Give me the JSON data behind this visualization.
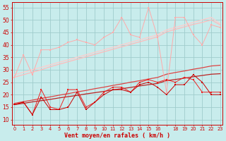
{
  "bg_color": "#c8ecec",
  "grid_color": "#a0cccc",
  "xlabel": "Vent moyen/en rafales ( km/h )",
  "ylim": [
    8,
    57
  ],
  "yticks": [
    10,
    15,
    20,
    25,
    30,
    35,
    40,
    45,
    50,
    55
  ],
  "xlabels": [
    "0",
    "1",
    "2",
    "3",
    "4",
    "5",
    "6",
    "7",
    "8",
    "9",
    "10",
    "11",
    "12",
    "13",
    "14",
    "15",
    "16",
    "",
    "18",
    "19",
    "20",
    "21",
    "22",
    "23"
  ],
  "trend_light1_y": [
    27,
    28.0,
    29.0,
    30.0,
    31.2,
    32.2,
    33.2,
    34.2,
    35.2,
    36.2,
    37.2,
    38.2,
    39.2,
    40.2,
    41.2,
    42.2,
    43.2,
    45.2,
    46.2,
    47.2,
    48.2,
    49.0,
    50.0,
    48.0
  ],
  "trend_light1_color": "#ffbbbb",
  "trend_light2_y": [
    28.0,
    29.0,
    30.0,
    31.0,
    32.0,
    33.0,
    34.0,
    35.0,
    36.0,
    37.0,
    38.0,
    39.0,
    40.0,
    41.0,
    42.0,
    43.0,
    44.0,
    46.0,
    47.0,
    48.0,
    49.0,
    50.0,
    51.0,
    48.5
  ],
  "trend_light2_color": "#ffcccc",
  "trend_med1_y": [
    16.5,
    17.2,
    17.8,
    18.5,
    19.1,
    19.8,
    20.4,
    21.1,
    21.7,
    22.4,
    23.0,
    23.7,
    24.3,
    25.0,
    25.6,
    26.3,
    26.9,
    28.2,
    28.9,
    29.5,
    30.2,
    30.8,
    31.5,
    31.8
  ],
  "trend_med1_color": "#dd4444",
  "trend_med2_y": [
    16.0,
    16.5,
    17.1,
    17.6,
    18.1,
    18.7,
    19.2,
    19.7,
    20.3,
    20.8,
    21.3,
    21.9,
    22.4,
    22.9,
    23.5,
    24.0,
    24.5,
    25.6,
    26.1,
    26.6,
    27.2,
    27.7,
    28.2,
    28.4
  ],
  "trend_med2_color": "#bb2222",
  "noisy_light_x": [
    0,
    1,
    2,
    3,
    4,
    5,
    6,
    7,
    8,
    9,
    10,
    11,
    12,
    13,
    14,
    15,
    16,
    17,
    18,
    19,
    20,
    21,
    22,
    23
  ],
  "noisy_light_y": [
    27,
    36,
    28,
    38,
    38,
    39,
    41,
    42,
    41,
    40,
    43,
    45,
    51,
    44,
    43,
    55,
    43,
    21,
    51,
    51,
    44,
    40,
    48,
    47
  ],
  "noisy_light_color": "#ffaaaa",
  "noisy_dark1_x": [
    0,
    1,
    2,
    3,
    4,
    5,
    6,
    7,
    8,
    9,
    10,
    11,
    12,
    13,
    14,
    15,
    16,
    17,
    18,
    19,
    20,
    21,
    22,
    23
  ],
  "noisy_dark1_y": [
    16,
    17,
    12,
    22,
    15,
    14,
    22,
    22,
    15,
    17,
    21,
    23,
    23,
    21,
    25,
    26,
    25,
    26,
    25,
    27,
    26,
    21,
    21,
    21
  ],
  "noisy_dark1_color": "#ee2222",
  "noisy_dark2_x": [
    0,
    1,
    2,
    3,
    4,
    5,
    6,
    7,
    8,
    9,
    10,
    11,
    12,
    13,
    14,
    15,
    16,
    17,
    18,
    19,
    20,
    21,
    22,
    23
  ],
  "noisy_dark2_y": [
    16,
    17,
    12,
    19,
    14,
    14,
    15,
    21,
    14,
    17,
    20,
    22,
    22,
    21,
    24,
    25,
    23,
    20,
    24,
    24,
    28,
    25,
    20,
    20
  ],
  "noisy_dark2_color": "#cc0000",
  "tick_color": "#cc0000",
  "font_color": "#cc0000",
  "axis_color": "#cc0000"
}
